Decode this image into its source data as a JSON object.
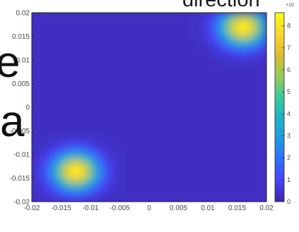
{
  "fragments": {
    "title": "direction",
    "left_glyph_1": "e",
    "left_glyph_2": "a"
  },
  "chart_data": {
    "type": "heatmap",
    "xlim": [
      -0.02,
      0.02
    ],
    "ylim": [
      -0.02,
      0.02
    ],
    "xticks": [
      "-0.02",
      "-0.015",
      "-0.01",
      "-0.005",
      "0",
      "0.005",
      "0.01",
      "0.015",
      "0.02"
    ],
    "yticks": [
      "0.02",
      "0.015",
      "0.01",
      "0.005",
      "0",
      "-0.005",
      "-0.01",
      "-0.015",
      "-0.02"
    ],
    "colorbar": {
      "multiplier": "×10",
      "min": 0,
      "max": 8.6,
      "ticks": [
        "8",
        "7",
        "6",
        "5",
        "4",
        "3",
        "2",
        "1",
        "0"
      ],
      "colormap": [
        "#3e26a8",
        "#4743f8",
        "#2d6fff",
        "#1f98e3",
        "#1ab5c8",
        "#3bc99a",
        "#98cb57",
        "#ddbc34",
        "#fcd62c",
        "#f9fb15"
      ]
    },
    "peaks": [
      {
        "x": 0.016,
        "y": 0.017,
        "value": 8.5,
        "spread": 0.0025
      },
      {
        "x": -0.0125,
        "y": -0.0135,
        "value": 8.5,
        "spread": 0.0025
      }
    ],
    "background_level": 0.3,
    "grid": false
  }
}
